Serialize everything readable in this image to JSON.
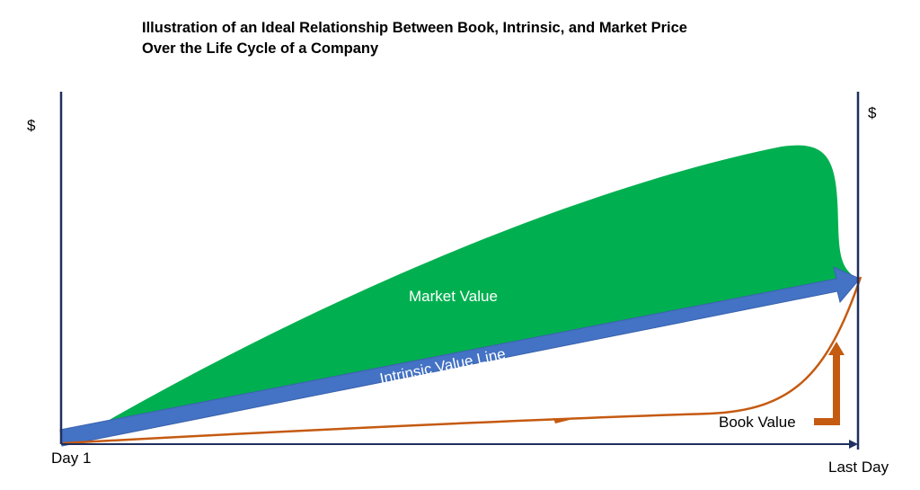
{
  "title": {
    "line1": "Illustration of an Ideal Relationship Between Book, Intrinsic, and Market Price",
    "line2": "Over the Life Cycle of a Company"
  },
  "axes": {
    "left_y_label": "$",
    "right_y_label": "$",
    "x_start_label": "Day 1",
    "x_end_label": "Last Day"
  },
  "regions": {
    "market_value_label": "Market Value",
    "intrinsic_value_label": "Intrinsic Value Line",
    "book_value_label": "Book Value"
  },
  "colors": {
    "market_value": "#00b050",
    "intrinsic_value": "#4472c4",
    "book_value": "#c55a11",
    "axis": "#1f2f5f"
  }
}
